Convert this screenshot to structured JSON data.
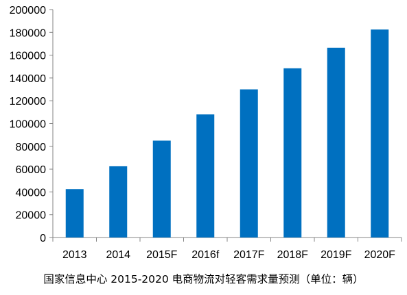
{
  "chart_data": {
    "type": "bar",
    "categories": [
      "2013",
      "2014",
      "2015F",
      "2016f",
      "2017F",
      "2018F",
      "2019F",
      "2020F"
    ],
    "values": [
      42500,
      62500,
      85000,
      108000,
      130000,
      148500,
      166500,
      182500
    ],
    "title": "",
    "xlabel": "",
    "ylabel": "",
    "ylim": [
      0,
      200000
    ],
    "yticks": [
      0,
      20000,
      40000,
      60000,
      80000,
      100000,
      120000,
      140000,
      160000,
      180000,
      200000
    ],
    "grid": false,
    "legend": "none",
    "bar_color": "#0070C0"
  },
  "caption": "国家信息中心 2015-2020 电商物流对轻客需求量预测（单位：辆）"
}
